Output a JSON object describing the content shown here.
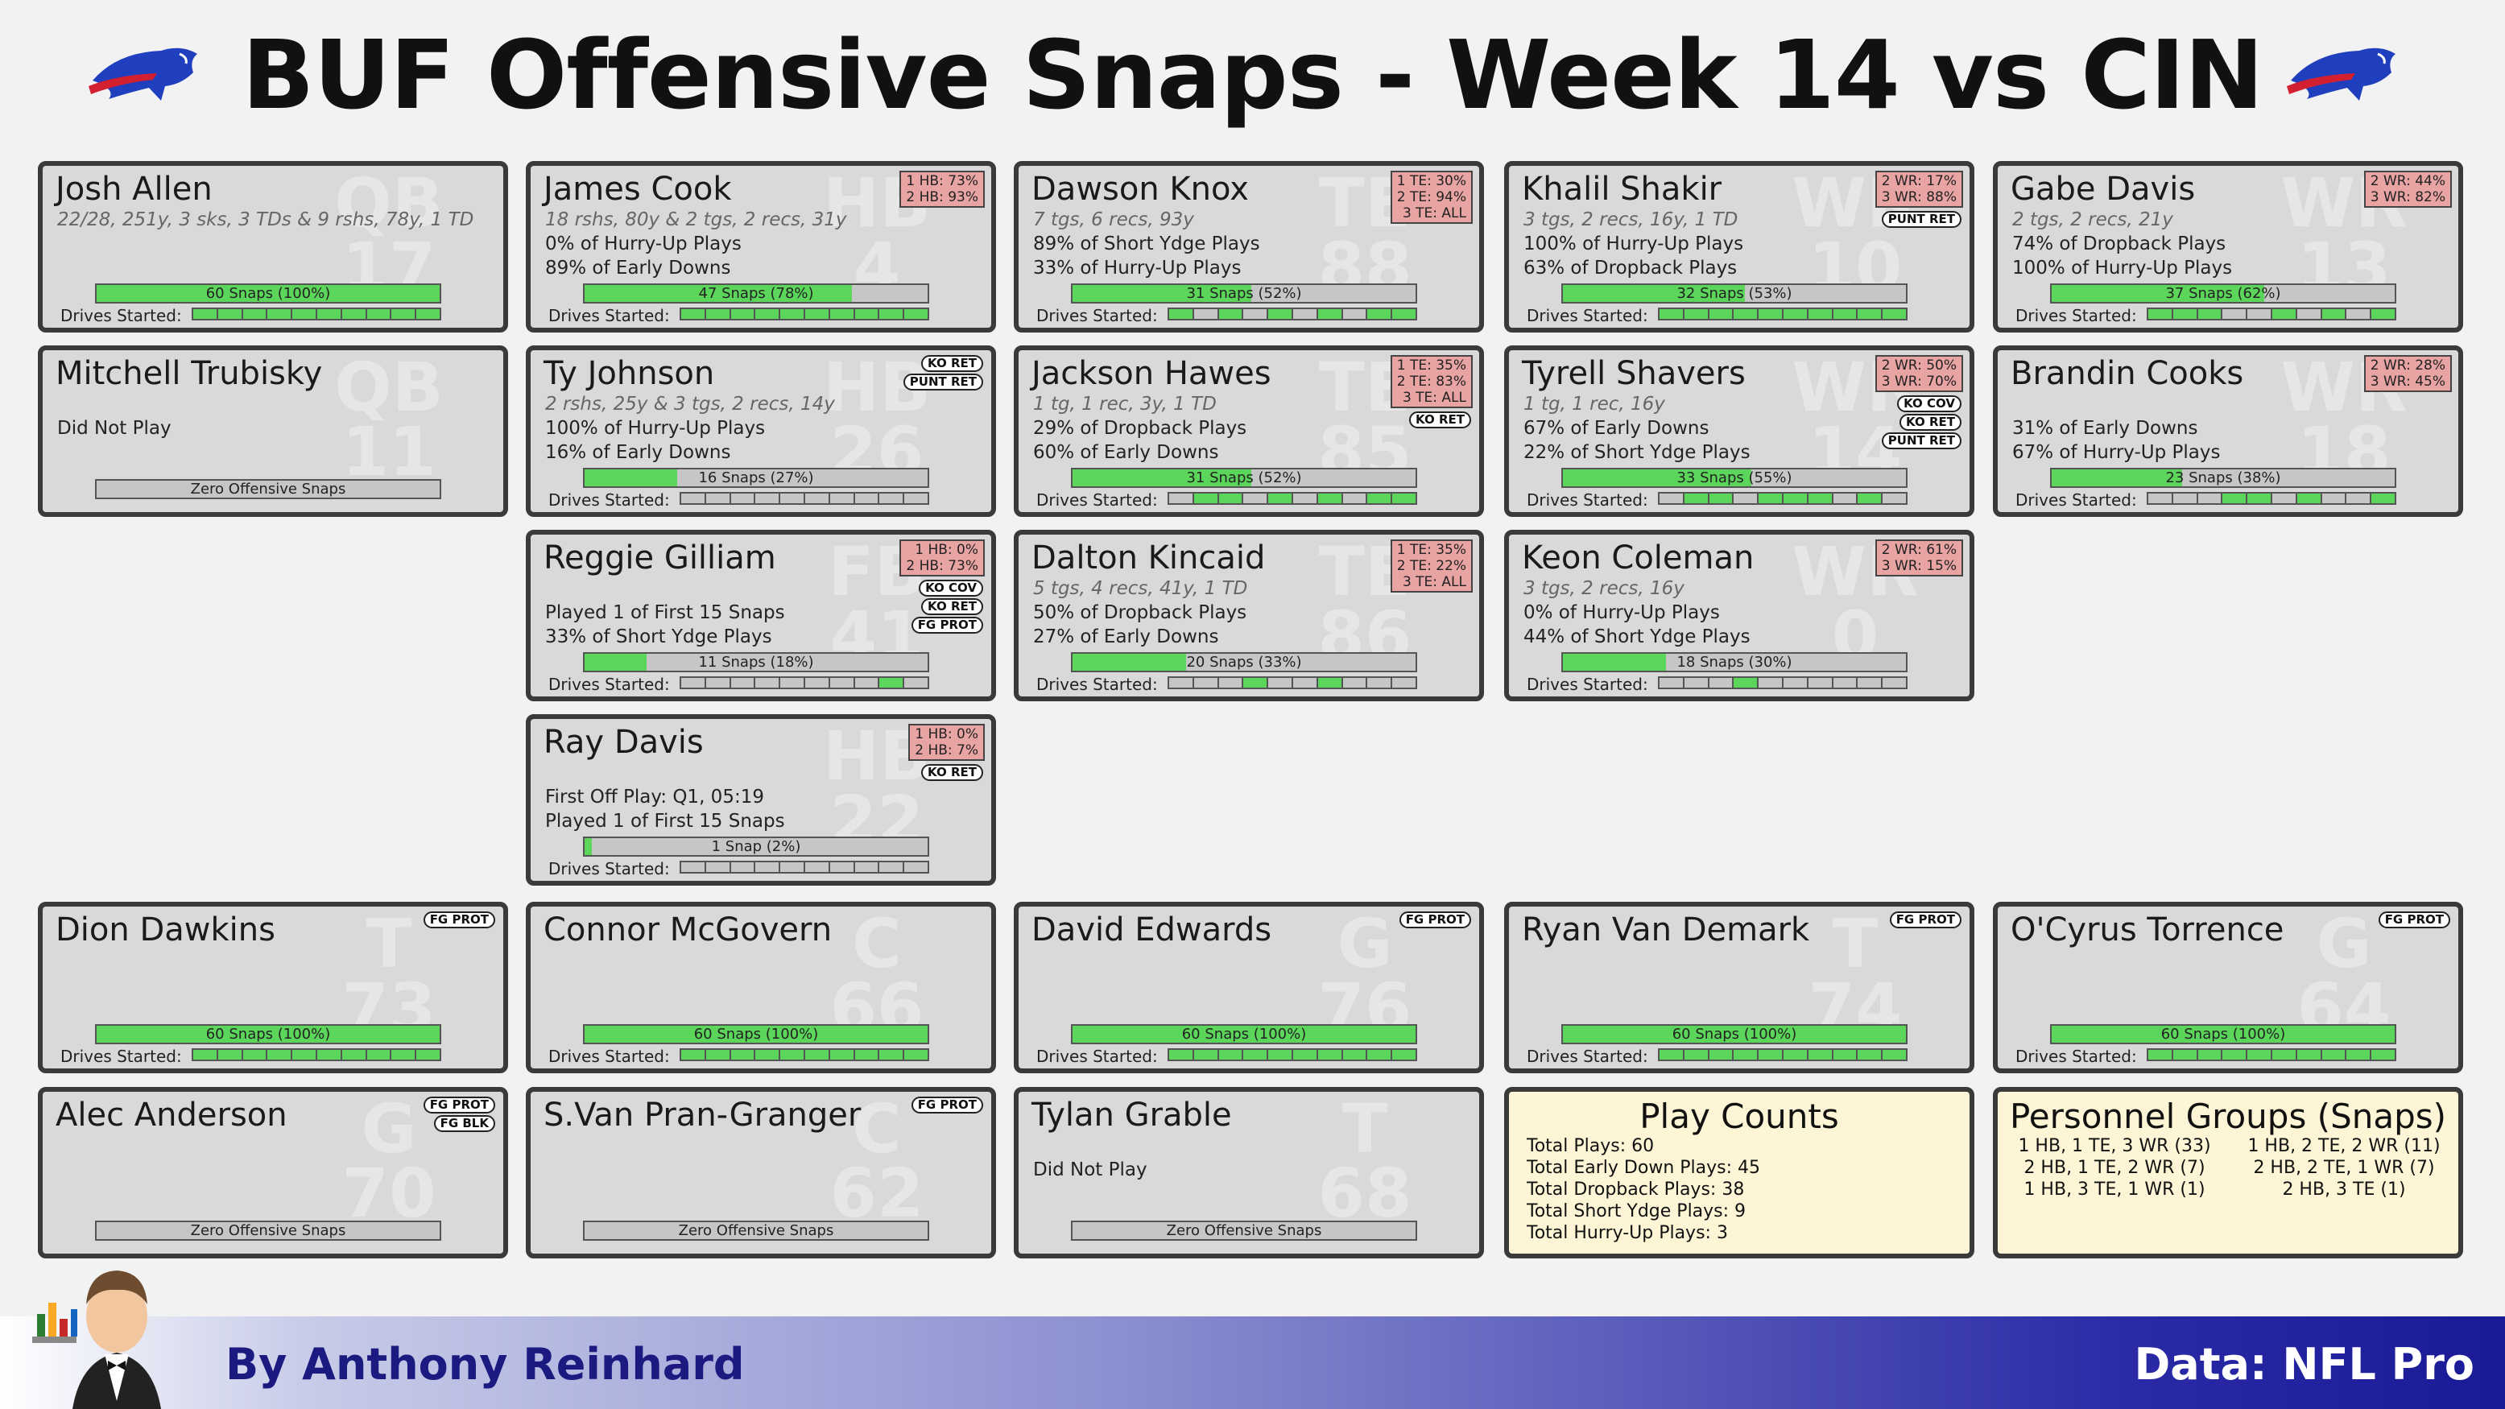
{
  "title": "BUF Offensive Snaps - Week 14 vs CIN",
  "footer": {
    "byline": "By Anthony Reinhard",
    "source": "Data: NFL Pro"
  },
  "colors": {
    "snap_fill": "#5bd65b",
    "pct_box": "#e8a3a3",
    "note_bg": "#fdf5d5",
    "card_bg": "#d9d9d9"
  },
  "cards": [
    {
      "name": "Josh Allen",
      "pos": "QB",
      "num": "17",
      "lines": [
        "22/28, 251y, 3 sks, 3 TDs & 9 rshs, 78y, 1 TD",
        "",
        ""
      ],
      "snaps": "60 Snaps (100%)",
      "snap_pct": 1.0,
      "drives": [
        1,
        1,
        1,
        1,
        1,
        1,
        1,
        1,
        1,
        1
      ],
      "drives_label": "Drives Started:"
    },
    {
      "name": "James Cook",
      "pos": "HB",
      "num": "4",
      "pct": [
        "1 HB: 73%",
        "2 HB: 93%"
      ],
      "lines": [
        "18 rshs, 80y & 2 tgs, 2 recs, 31y",
        "0% of Hurry-Up Plays",
        "89% of Early Downs"
      ],
      "snaps": "47 Snaps (78%)",
      "snap_pct": 0.78,
      "drives": [
        1,
        1,
        1,
        1,
        1,
        1,
        1,
        1,
        1,
        1
      ],
      "drives_label": "Drives Started:"
    },
    {
      "name": "Dawson Knox",
      "pos": "TE",
      "num": "88",
      "pct": [
        "1 TE: 30%",
        "2 TE: 94%",
        "3 TE: ALL"
      ],
      "lines": [
        "7 tgs, 6 recs, 93y",
        "89% of Short Ydge Plays",
        "33% of Hurry-Up Plays"
      ],
      "snaps": "31 Snaps (52%)",
      "snap_pct": 0.52,
      "drives": [
        1,
        0,
        1,
        0,
        1,
        0,
        1,
        0,
        1,
        1
      ],
      "drives_label": "Drives Started:"
    },
    {
      "name": "Khalil Shakir",
      "pos": "WR",
      "num": "10",
      "pct": [
        "2 WR: 17%",
        "3 WR: 88%"
      ],
      "badges": [
        "PUNT RET"
      ],
      "lines": [
        "3 tgs, 2 recs, 16y, 1 TD",
        "100% of Hurry-Up Plays",
        "63% of Dropback Plays"
      ],
      "snaps": "32 Snaps (53%)",
      "snap_pct": 0.53,
      "drives": [
        1,
        1,
        1,
        1,
        1,
        1,
        1,
        1,
        1,
        1
      ],
      "drives_label": "Drives Started:"
    },
    {
      "name": "Gabe Davis",
      "pos": "WR",
      "num": "13",
      "pct": [
        "2 WR: 44%",
        "3 WR: 82%"
      ],
      "lines": [
        "2 tgs, 2 recs, 21y",
        "74% of Dropback Plays",
        "100% of Hurry-Up Plays"
      ],
      "snaps": "37 Snaps (62%)",
      "snap_pct": 0.62,
      "drives": [
        1,
        1,
        1,
        0,
        0,
        1,
        0,
        1,
        0,
        1
      ],
      "drives_label": "Drives Started:"
    },
    {
      "name": "Mitchell Trubisky",
      "pos": "QB",
      "num": "11",
      "lines": [
        "",
        "Did Not Play",
        ""
      ],
      "snaps": "Zero Offensive Snaps",
      "snap_pct": 0
    },
    {
      "name": "Ty Johnson",
      "pos": "HB",
      "num": "26",
      "badges": [
        "KO RET",
        "PUNT RET"
      ],
      "lines": [
        "2 rshs, 25y & 3 tgs, 2 recs, 14y",
        "100% of Hurry-Up Plays",
        "16% of Early Downs"
      ],
      "snaps": "16 Snaps (27%)",
      "snap_pct": 0.27,
      "drives": [
        0,
        0,
        0,
        0,
        0,
        0,
        0,
        0,
        0,
        0
      ],
      "drives_label": "Drives Started:"
    },
    {
      "name": "Jackson Hawes",
      "pos": "TE",
      "num": "85",
      "pct": [
        "1 TE: 35%",
        "2 TE: 83%",
        "3 TE: ALL"
      ],
      "badges": [
        "KO RET"
      ],
      "lines": [
        "1 tg, 1 rec, 3y, 1 TD",
        "29% of Dropback Plays",
        "60% of Early Downs"
      ],
      "snaps": "31 Snaps (52%)",
      "snap_pct": 0.52,
      "drives": [
        0,
        1,
        1,
        0,
        1,
        0,
        1,
        0,
        1,
        1
      ],
      "drives_label": "Drives Started:"
    },
    {
      "name": "Tyrell Shavers",
      "pos": "WR",
      "num": "14",
      "pct": [
        "2 WR: 50%",
        "3 WR: 70%"
      ],
      "badges": [
        "KO COV",
        "KO RET",
        "PUNT RET"
      ],
      "lines": [
        "1 tg, 1 rec, 16y",
        "67% of Early Downs",
        "22% of Short Ydge Plays"
      ],
      "snaps": "33 Snaps (55%)",
      "snap_pct": 0.55,
      "drives": [
        0,
        1,
        1,
        0,
        1,
        1,
        1,
        0,
        1,
        0
      ],
      "drives_label": "Drives Started:"
    },
    {
      "name": "Brandin Cooks",
      "pos": "WR",
      "num": "18",
      "pct": [
        "2 WR: 28%",
        "3 WR: 45%"
      ],
      "lines": [
        "",
        "31% of Early Downs",
        "67% of Hurry-Up Plays"
      ],
      "snaps": "23 Snaps (38%)",
      "snap_pct": 0.38,
      "drives": [
        0,
        0,
        0,
        1,
        1,
        0,
        1,
        0,
        0,
        1
      ],
      "drives_label": "Drives Started:"
    },
    {
      "name": "Reggie Gilliam",
      "pos": "FB",
      "num": "41",
      "pct": [
        "1 HB:  0%",
        "2 HB: 73%"
      ],
      "badges": [
        "KO COV",
        "KO RET",
        "FG PROT"
      ],
      "lines": [
        "",
        "Played 1 of First 15 Snaps",
        "33% of Short Ydge Plays"
      ],
      "snaps": "11 Snaps (18%)",
      "snap_pct": 0.18,
      "drives": [
        0,
        0,
        0,
        0,
        0,
        0,
        0,
        0,
        1,
        0
      ],
      "drives_label": "Drives Started:"
    },
    {
      "name": "Dalton Kincaid",
      "pos": "TE",
      "num": "86",
      "pct": [
        "1 TE: 35%",
        "2 TE: 22%",
        "3 TE: ALL"
      ],
      "lines": [
        "5 tgs, 4 recs, 41y, 1 TD",
        "50% of Dropback Plays",
        "27% of Early Downs"
      ],
      "snaps": "20 Snaps (33%)",
      "snap_pct": 0.33,
      "drives": [
        0,
        0,
        0,
        1,
        0,
        0,
        1,
        0,
        0,
        0
      ],
      "drives_label": "Drives Started:"
    },
    {
      "name": "Keon Coleman",
      "pos": "WR",
      "num": "0",
      "pct": [
        "2 WR: 61%",
        "3 WR: 15%"
      ],
      "lines": [
        "3 tgs, 2 recs, 16y",
        "0% of Hurry-Up Plays",
        "44% of Short Ydge Plays"
      ],
      "snaps": "18 Snaps (30%)",
      "snap_pct": 0.3,
      "drives": [
        0,
        0,
        0,
        1,
        0,
        0,
        0,
        0,
        0,
        0
      ],
      "drives_label": "Drives Started:"
    },
    {
      "name": "Ray Davis",
      "pos": "HB",
      "num": "22",
      "pct": [
        "1 HB:  0%",
        "2 HB:  7%"
      ],
      "badges": [
        "KO RET"
      ],
      "lines": [
        "",
        "First Off Play: Q1, 05:19",
        "Played 1 of First 15 Snaps"
      ],
      "snaps": "1 Snap (2%)",
      "snap_pct": 0.02,
      "drives": [
        0,
        0,
        0,
        0,
        0,
        0,
        0,
        0,
        0,
        0
      ],
      "drives_label": "Drives Started:"
    },
    {
      "name": "Dion Dawkins",
      "pos": "T",
      "num": "73",
      "badges": [
        "FG PROT"
      ],
      "lines": [
        "",
        "",
        ""
      ],
      "snaps": "60 Snaps (100%)",
      "snap_pct": 1.0,
      "drives": [
        1,
        1,
        1,
        1,
        1,
        1,
        1,
        1,
        1,
        1
      ],
      "drives_label": "Drives Started:"
    },
    {
      "name": "Connor McGovern",
      "pos": "C",
      "num": "66",
      "lines": [
        "",
        "",
        ""
      ],
      "snaps": "60 Snaps (100%)",
      "snap_pct": 1.0,
      "drives": [
        1,
        1,
        1,
        1,
        1,
        1,
        1,
        1,
        1,
        1
      ],
      "drives_label": "Drives Started:"
    },
    {
      "name": "David Edwards",
      "pos": "G",
      "num": "76",
      "badges": [
        "FG PROT"
      ],
      "lines": [
        "",
        "",
        ""
      ],
      "snaps": "60 Snaps (100%)",
      "snap_pct": 1.0,
      "drives": [
        1,
        1,
        1,
        1,
        1,
        1,
        1,
        1,
        1,
        1
      ],
      "drives_label": "Drives Started:"
    },
    {
      "name": "Ryan Van Demark",
      "pos": "T",
      "num": "74",
      "badges": [
        "FG PROT"
      ],
      "lines": [
        "",
        "",
        ""
      ],
      "snaps": "60 Snaps (100%)",
      "snap_pct": 1.0,
      "drives": [
        1,
        1,
        1,
        1,
        1,
        1,
        1,
        1,
        1,
        1
      ],
      "drives_label": "Drives Started:"
    },
    {
      "name": "O'Cyrus Torrence",
      "pos": "G",
      "num": "64",
      "badges": [
        "FG PROT"
      ],
      "lines": [
        "",
        "",
        ""
      ],
      "snaps": "60 Snaps (100%)",
      "snap_pct": 1.0,
      "drives": [
        1,
        1,
        1,
        1,
        1,
        1,
        1,
        1,
        1,
        1
      ],
      "drives_label": "Drives Started:"
    },
    {
      "name": "Alec Anderson",
      "pos": "G",
      "num": "70",
      "badges": [
        "FG PROT",
        "FG BLK"
      ],
      "lines": [
        "",
        "",
        ""
      ],
      "snaps": "Zero Offensive Snaps",
      "snap_pct": 0
    },
    {
      "name": "S.Van Pran-Granger",
      "pos": "C",
      "num": "62",
      "badges": [
        "FG PROT"
      ],
      "lines": [
        "",
        "",
        ""
      ],
      "snaps": "Zero Offensive Snaps",
      "snap_pct": 0
    },
    {
      "name": "Tylan Grable",
      "pos": "T",
      "num": "68",
      "lines": [
        "",
        "Did Not Play",
        ""
      ],
      "snaps": "Zero Offensive Snaps",
      "snap_pct": 0
    }
  ],
  "play_counts": {
    "title": "Play Counts",
    "lines": [
      "Total Plays: 60",
      "Total Early Down Plays: 45",
      "Total Dropback Plays: 38",
      "Total Short Ydge Plays: 9",
      "Total Hurry-Up Plays: 3"
    ]
  },
  "personnel": {
    "title": "Personnel Groups (Snaps)",
    "left": [
      "1 HB, 1 TE, 3 WR (33)",
      "2 HB, 1 TE, 2 WR (7)",
      "1 HB, 3 TE, 1 WR (1)"
    ],
    "right": [
      "1 HB, 2 TE, 2 WR (11)",
      "2 HB, 2 TE, 1 WR (7)",
      "2 HB, 3 TE (1)"
    ]
  }
}
